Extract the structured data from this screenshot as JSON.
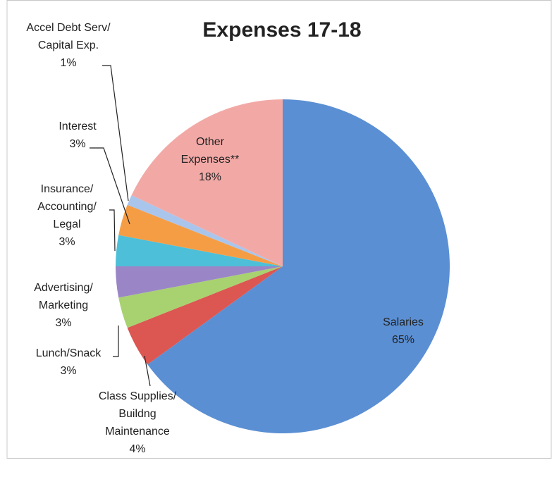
{
  "chart_data": {
    "type": "pie",
    "title": "Expenses 17-18",
    "categories": [
      [
        "Salaries"
      ],
      [
        "Class Supplies/",
        "Buildng",
        "Maintenance"
      ],
      [
        "Lunch/Snack"
      ],
      [
        "Advertising/",
        "Marketing"
      ],
      [
        "Insurance/",
        "Accounting/",
        "Legal"
      ],
      [
        "Interest"
      ],
      [
        "Accel Debt Serv/",
        "Capital Exp."
      ],
      [
        "Other",
        "Expenses**"
      ]
    ],
    "values": [
      65,
      4,
      3,
      3,
      3,
      3,
      1,
      18
    ],
    "value_labels": [
      "65%",
      "4%",
      "3%",
      "3%",
      "3%",
      "3%",
      "1%",
      "18%"
    ],
    "colors": [
      "#5b8fd3",
      "#dc5652",
      "#a8d170",
      "#9a86c6",
      "#4dbfd8",
      "#f59d45",
      "#a9c5ec",
      "#f2a9a6"
    ]
  }
}
